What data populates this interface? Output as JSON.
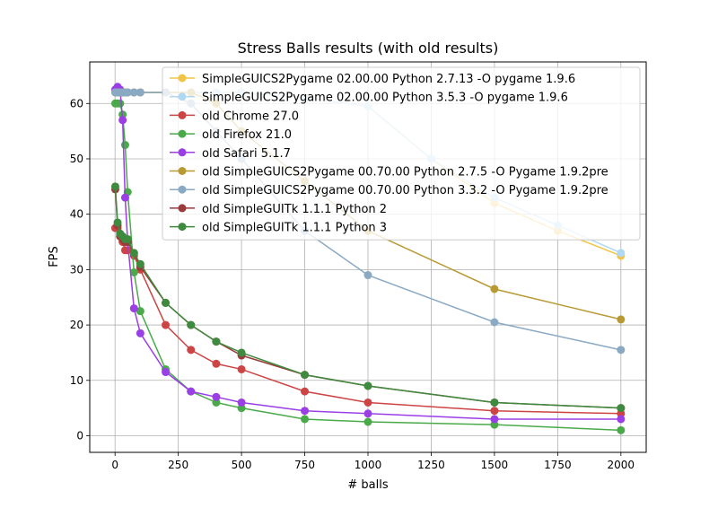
{
  "chart_data": {
    "type": "line",
    "title": "Stress Balls results (with old results)",
    "xlabel": "# balls",
    "ylabel": "FPS",
    "xlim": [
      -100,
      2100
    ],
    "ylim": [
      -3,
      67.5
    ],
    "xticks": [
      0,
      250,
      500,
      750,
      1000,
      1250,
      1500,
      1750,
      2000
    ],
    "yticks": [
      0,
      10,
      20,
      30,
      40,
      50,
      60
    ],
    "grid": true,
    "legend_position": "top-right",
    "series": [
      {
        "name": "SimpleGUICS2Pygame 02.00.00 Python 2.7.13 -O pygame 1.9.6",
        "color": "#f2c445",
        "points": [
          [
            1,
            62
          ],
          [
            10,
            62
          ],
          [
            20,
            62
          ],
          [
            30,
            62
          ],
          [
            40,
            62
          ],
          [
            50,
            62
          ],
          [
            75,
            62
          ],
          [
            100,
            62
          ],
          [
            200,
            62
          ],
          [
            300,
            62
          ],
          [
            400,
            62
          ],
          [
            500,
            62
          ],
          [
            750,
            61
          ],
          [
            1000,
            59.5
          ],
          [
            1250,
            50
          ],
          [
            1500,
            42
          ],
          [
            1750,
            37
          ],
          [
            2000,
            32.5
          ]
        ]
      },
      {
        "name": "SimpleGUICS2Pygame 02.00.00 Python 3.5.3 -O pygame 1.9.6",
        "color": "#b0d8f2",
        "points": [
          [
            1,
            62
          ],
          [
            10,
            62
          ],
          [
            20,
            62
          ],
          [
            30,
            62
          ],
          [
            40,
            62
          ],
          [
            50,
            62
          ],
          [
            75,
            62
          ],
          [
            100,
            62
          ],
          [
            200,
            62
          ],
          [
            300,
            62
          ],
          [
            400,
            62
          ],
          [
            500,
            62
          ],
          [
            750,
            61
          ],
          [
            1000,
            59.5
          ],
          [
            1250,
            50
          ],
          [
            1500,
            43
          ],
          [
            1750,
            38
          ],
          [
            2000,
            33
          ]
        ]
      },
      {
        "name": "old Chrome 27.0",
        "color": "#cc4444",
        "points": [
          [
            1,
            37.5
          ],
          [
            10,
            37.5
          ],
          [
            20,
            36
          ],
          [
            30,
            35
          ],
          [
            40,
            33.5
          ],
          [
            50,
            33.5
          ],
          [
            75,
            32.5
          ],
          [
            100,
            30
          ],
          [
            200,
            20
          ],
          [
            300,
            15.5
          ],
          [
            400,
            13
          ],
          [
            500,
            12
          ],
          [
            750,
            8
          ],
          [
            1000,
            6
          ],
          [
            1500,
            4.5
          ],
          [
            2000,
            4
          ]
        ]
      },
      {
        "name": "old Firefox 21.0",
        "color": "#4aaa4a",
        "points": [
          [
            1,
            60
          ],
          [
            10,
            60
          ],
          [
            20,
            60
          ],
          [
            30,
            58
          ],
          [
            40,
            52.5
          ],
          [
            50,
            44
          ],
          [
            75,
            29.5
          ],
          [
            100,
            22.5
          ],
          [
            200,
            12
          ],
          [
            300,
            8
          ],
          [
            400,
            6
          ],
          [
            500,
            5
          ],
          [
            750,
            3
          ],
          [
            1000,
            2.5
          ],
          [
            1500,
            2
          ],
          [
            2000,
            1
          ]
        ]
      },
      {
        "name": "old Safari 5.1.7",
        "color": "#9a3ee6",
        "points": [
          [
            1,
            62.5
          ],
          [
            10,
            63
          ],
          [
            20,
            62.5
          ],
          [
            30,
            57
          ],
          [
            40,
            43
          ],
          [
            50,
            35
          ],
          [
            75,
            23
          ],
          [
            100,
            18.5
          ],
          [
            200,
            11.5
          ],
          [
            300,
            8
          ],
          [
            400,
            7
          ],
          [
            500,
            6
          ],
          [
            750,
            4.5
          ],
          [
            1000,
            4
          ],
          [
            1500,
            3
          ],
          [
            2000,
            3
          ]
        ]
      },
      {
        "name": "old SimpleGUICS2Pygame 00.70.00 Python 2.7.5 -O Pygame 1.9.2pre",
        "color": "#b89a35",
        "points": [
          [
            1,
            62
          ],
          [
            10,
            62
          ],
          [
            20,
            62
          ],
          [
            30,
            62
          ],
          [
            40,
            62
          ],
          [
            50,
            62
          ],
          [
            75,
            62
          ],
          [
            100,
            62
          ],
          [
            200,
            62
          ],
          [
            300,
            62
          ],
          [
            400,
            60
          ],
          [
            500,
            55
          ],
          [
            750,
            46
          ],
          [
            1000,
            37
          ],
          [
            1500,
            26.5
          ],
          [
            2000,
            21
          ]
        ]
      },
      {
        "name": "old SimpleGUICS2Pygame 00.70.00 Python 3.3.2 -O Pygame 1.9.2pre",
        "color": "#8aa9c3",
        "points": [
          [
            1,
            62
          ],
          [
            10,
            62
          ],
          [
            20,
            62
          ],
          [
            30,
            62
          ],
          [
            40,
            62
          ],
          [
            50,
            62
          ],
          [
            75,
            62
          ],
          [
            100,
            62
          ],
          [
            200,
            62
          ],
          [
            300,
            60
          ],
          [
            400,
            55
          ],
          [
            500,
            50
          ],
          [
            750,
            37
          ],
          [
            1000,
            29
          ],
          [
            1500,
            20.5
          ],
          [
            2000,
            15.5
          ]
        ]
      },
      {
        "name": "old SimpleGUITk 1.1.1 Python 2",
        "color": "#9a3a3a",
        "points": [
          [
            1,
            44.5
          ],
          [
            10,
            38
          ],
          [
            20,
            36
          ],
          [
            30,
            35.5
          ],
          [
            40,
            35
          ],
          [
            50,
            35
          ],
          [
            75,
            33
          ],
          [
            100,
            30.5
          ],
          [
            200,
            24
          ],
          [
            300,
            20
          ],
          [
            400,
            17
          ],
          [
            500,
            14.5
          ],
          [
            750,
            11
          ],
          [
            1000,
            9
          ],
          [
            1500,
            6
          ],
          [
            2000,
            5
          ]
        ]
      },
      {
        "name": "old SimpleGUITk 1.1.1 Python 3",
        "color": "#3e8a3e",
        "points": [
          [
            1,
            45
          ],
          [
            10,
            38.5
          ],
          [
            20,
            36.5
          ],
          [
            30,
            36
          ],
          [
            40,
            35.5
          ],
          [
            50,
            35.5
          ],
          [
            75,
            33
          ],
          [
            100,
            31
          ],
          [
            200,
            24
          ],
          [
            300,
            20
          ],
          [
            400,
            17
          ],
          [
            500,
            15
          ],
          [
            750,
            11
          ],
          [
            1000,
            9
          ],
          [
            1500,
            6
          ],
          [
            2000,
            5
          ]
        ]
      }
    ]
  }
}
